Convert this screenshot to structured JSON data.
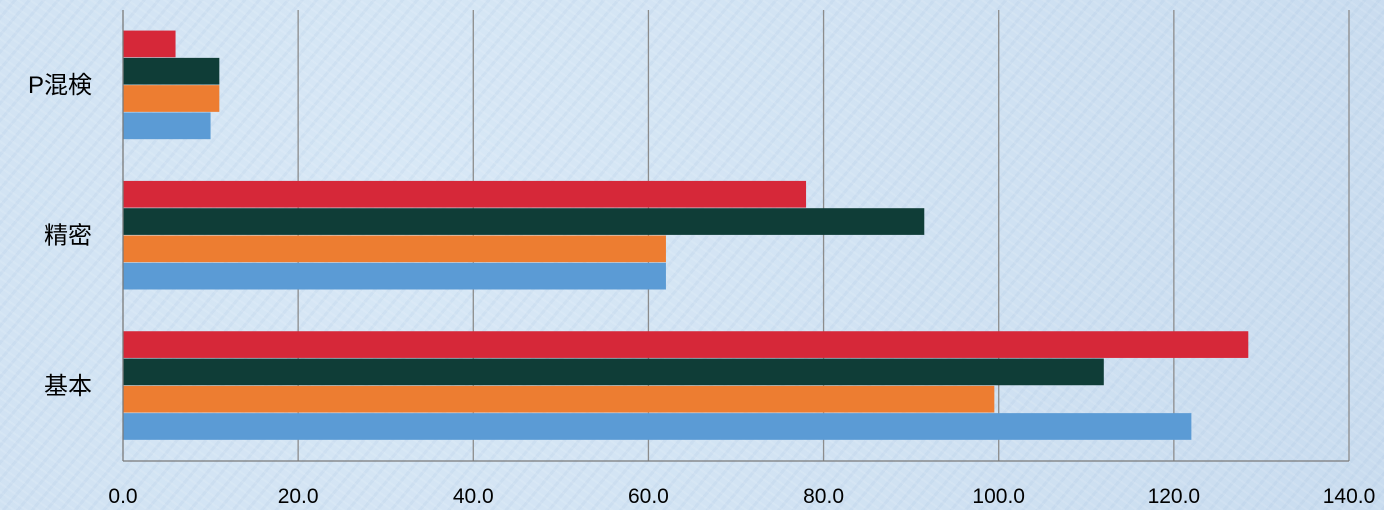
{
  "chart_data": {
    "type": "bar",
    "orientation": "horizontal",
    "title": "",
    "xlabel": "",
    "ylabel": "",
    "categories": [
      "P混検",
      "精密",
      "基本"
    ],
    "xlim": [
      0,
      140
    ],
    "xticks": [
      "0.0",
      "20.0",
      "40.0",
      "60.0",
      "80.0",
      "100.0",
      "120.0",
      "140.0"
    ],
    "grid": "vertical",
    "legend": "none",
    "series": [
      {
        "color": "#d62839",
        "values": [
          6,
          78,
          128.5
        ]
      },
      {
        "color": "#0f3d37",
        "values": [
          11,
          91.5,
          112
        ]
      },
      {
        "color": "#ed7d31",
        "values": [
          11,
          62,
          99.5
        ]
      },
      {
        "color": "#5b9bd5",
        "values": [
          10,
          62,
          122
        ]
      }
    ]
  }
}
